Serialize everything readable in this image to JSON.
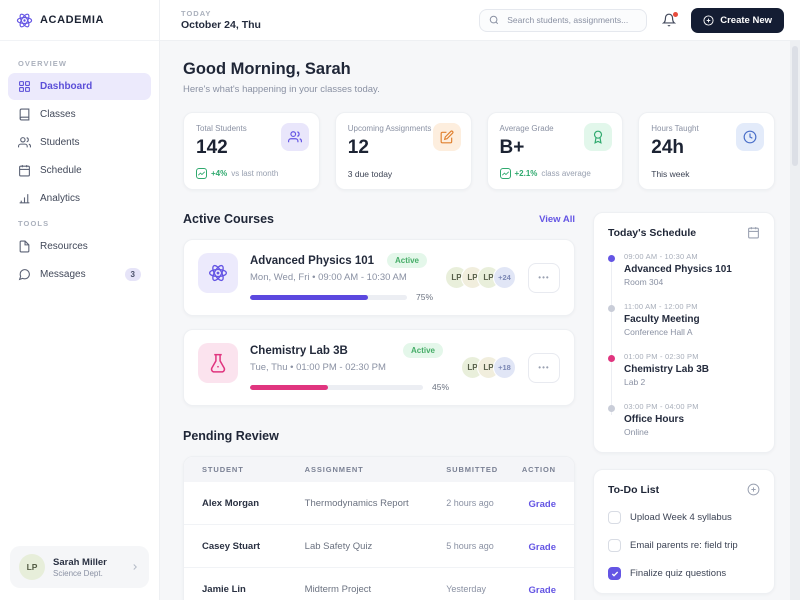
{
  "brand": {
    "name": "ACADEMIA"
  },
  "topbar": {
    "today_label": "TODAY",
    "date": "October 24, Thu",
    "search_placeholder": "Search students, assignments...",
    "create_label": "Create New"
  },
  "sidebar": {
    "sections": [
      {
        "label": "OVERVIEW",
        "items": [
          {
            "label": "Dashboard"
          },
          {
            "label": "Classes"
          },
          {
            "label": "Students"
          },
          {
            "label": "Schedule"
          },
          {
            "label": "Analytics"
          }
        ]
      },
      {
        "label": "TOOLS",
        "items": [
          {
            "label": "Resources"
          },
          {
            "label": "Messages",
            "badge": "3"
          }
        ]
      }
    ],
    "profile": {
      "initials": "LP",
      "name": "Sarah Miller",
      "dept": "Science Dept."
    }
  },
  "greeting": {
    "title": "Good Morning, Sarah",
    "subtitle": "Here's what's happening in your classes today."
  },
  "stats": [
    {
      "label": "Total Students",
      "value": "142",
      "trend": "+4%",
      "note": "vs last month",
      "icon": "users-icon",
      "icon_bg": "#e9e6fb",
      "icon_color": "#6455e4"
    },
    {
      "label": "Upcoming Assignments",
      "value": "12",
      "note": "3 due today",
      "icon": "edit-icon",
      "icon_bg": "#fdeede",
      "icon_color": "#e0802f"
    },
    {
      "label": "Average Grade",
      "value": "B+",
      "trend": "+2.1%",
      "note": "class average",
      "icon": "award-icon",
      "icon_bg": "#e2f7eb",
      "icon_color": "#2fa96e"
    },
    {
      "label": "Hours Taught",
      "value": "24h",
      "note": "This week",
      "icon": "clock-icon",
      "icon_bg": "#e3ebfa",
      "icon_color": "#4a6fc9"
    }
  ],
  "courses": {
    "title": "Active Courses",
    "view_all": "View All",
    "items": [
      {
        "name": "Advanced Physics 101",
        "schedule": "Mon, Wed, Fri • 09:00 AM - 10:30 AM",
        "status": "Active",
        "progress": 75,
        "progress_label": "75%",
        "bar_color": "#5b48df",
        "icon": "atom-icon",
        "icon_bg": "#eceafc",
        "icon_color": "#6455e4",
        "avatars": [
          {
            "text": "LP",
            "bg": "#e9efdb"
          },
          {
            "text": "LP",
            "bg": "#f1eedd"
          },
          {
            "text": "LP",
            "bg": "#e9efdb"
          }
        ],
        "more": "+24",
        "more_bg": "#e1e6f6",
        "more_color": "#7b87b4",
        "menu": "•••"
      },
      {
        "name": "Chemistry Lab 3B",
        "schedule": "Tue, Thu • 01:00 PM - 02:30 PM",
        "status": "Active",
        "progress": 45,
        "progress_label": "45%",
        "bar_color": "#e0357f",
        "icon": "test-tube-icon",
        "icon_bg": "#fbe3ee",
        "icon_color": "#e0357f",
        "avatars": [
          {
            "text": "LP",
            "bg": "#e9efdb"
          },
          {
            "text": "LP",
            "bg": "#f1eedd"
          }
        ],
        "more": "+18",
        "more_bg": "#e1e6f6",
        "more_color": "#7b87b4",
        "menu": "•••"
      }
    ]
  },
  "schedule_panel": {
    "title": "Today's Schedule",
    "items": [
      {
        "time": "09:00 AM - 10:30 AM",
        "title": "Advanced Physics 101",
        "location": "Room 304",
        "dot": "#6455e4"
      },
      {
        "time": "11:00 AM - 12:00 PM",
        "title": "Faculty Meeting",
        "location": "Conference Hall A",
        "dot": "#c9cdd8"
      },
      {
        "time": "01:00 PM - 02:30 PM",
        "title": "Chemistry Lab 3B",
        "location": "Lab 2",
        "dot": "#e0357f"
      },
      {
        "time": "03:00 PM - 04:00 PM",
        "title": "Office Hours",
        "location": "Online",
        "dot": "#c9cdd8"
      }
    ]
  },
  "pending": {
    "title": "Pending Review",
    "columns": [
      "STUDENT",
      "ASSIGNMENT",
      "SUBMITTED",
      "ACTION"
    ],
    "rows": [
      {
        "student": "Alex Morgan",
        "assignment": "Thermodynamics Report",
        "submitted": "2 hours ago",
        "action": "Grade"
      },
      {
        "student": "Casey Stuart",
        "assignment": "Lab Safety Quiz",
        "submitted": "5 hours ago",
        "action": "Grade"
      },
      {
        "student": "Jamie Lin",
        "assignment": "Midterm Project",
        "submitted": "Yesterday",
        "action": "Grade"
      }
    ]
  },
  "todo": {
    "title": "To-Do List",
    "items": [
      {
        "text": "Upload Week 4 syllabus",
        "done": false
      },
      {
        "text": "Email parents re: field trip",
        "done": false
      },
      {
        "text": "Finalize quiz questions",
        "done": true
      }
    ]
  },
  "colors": {
    "accent": "#6455e4",
    "dark": "#141d33",
    "green": "#2fa96e",
    "pink": "#e0357f"
  }
}
